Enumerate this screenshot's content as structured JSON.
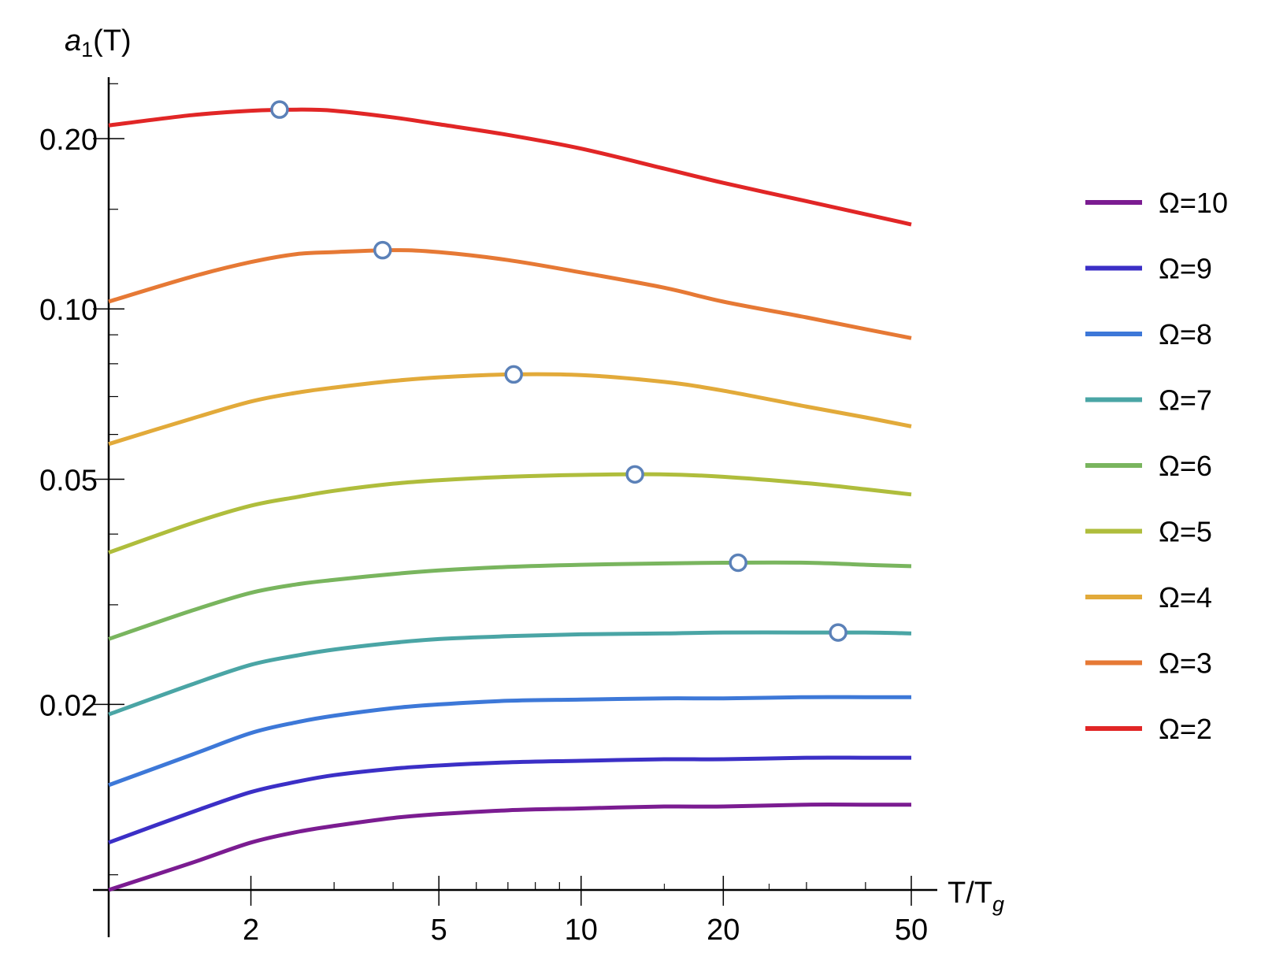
{
  "chart_data": {
    "type": "line",
    "title": "",
    "ylabel": {
      "main": "a",
      "sub": "1",
      "rest": "(T)"
    },
    "xlabel": {
      "main": "T/T",
      "sub": "g"
    },
    "xscale": "log",
    "yscale": "log",
    "xlim": [
      1,
      50
    ],
    "ylim": [
      0.0094,
      0.29
    ],
    "grid": false,
    "legend_position": "right",
    "x_ticks": [
      {
        "value": 2,
        "label": "2"
      },
      {
        "value": 5,
        "label": "5"
      },
      {
        "value": 10,
        "label": "10"
      },
      {
        "value": 20,
        "label": "20"
      },
      {
        "value": 50,
        "label": "50"
      }
    ],
    "y_ticks": [
      {
        "value": 0.02,
        "label": "0.02"
      },
      {
        "value": 0.05,
        "label": "0.05"
      },
      {
        "value": 0.1,
        "label": "0.10"
      },
      {
        "value": 0.2,
        "label": "0.20"
      }
    ],
    "x": [
      1,
      1.5,
      2,
      2.5,
      3,
      4,
      5,
      7,
      10,
      15,
      20,
      30,
      40,
      50
    ],
    "series": [
      {
        "name": "Ω=10",
        "color": "#7b1c91",
        "values": [
          0.0094,
          0.0105,
          0.0114,
          0.0119,
          0.0122,
          0.0126,
          0.0128,
          0.013,
          0.0131,
          0.0132,
          0.0132,
          0.0133,
          0.0133,
          0.0133
        ],
        "peak": null
      },
      {
        "name": "Ω=9",
        "color": "#3b2fc6",
        "values": [
          0.0114,
          0.0129,
          0.014,
          0.0146,
          0.015,
          0.0154,
          0.0156,
          0.0158,
          0.0159,
          0.016,
          0.016,
          0.0161,
          0.0161,
          0.0161
        ],
        "peak": null
      },
      {
        "name": "Ω=8",
        "color": "#3d78d8",
        "values": [
          0.0144,
          0.0163,
          0.0178,
          0.0186,
          0.0191,
          0.0197,
          0.02,
          0.0203,
          0.0204,
          0.0205,
          0.0205,
          0.0206,
          0.0206,
          0.0206
        ],
        "peak": null
      },
      {
        "name": "Ω=7",
        "color": "#4aa5a5",
        "values": [
          0.0192,
          0.0217,
          0.0235,
          0.0244,
          0.025,
          0.0257,
          0.0261,
          0.0264,
          0.0266,
          0.0267,
          0.0268,
          0.0268,
          0.0268,
          0.0267
        ],
        "peak": {
          "x": 35,
          "y": 0.0268
        }
      },
      {
        "name": "Ω=6",
        "color": "#79b55e",
        "values": [
          0.0261,
          0.0293,
          0.0315,
          0.0326,
          0.0332,
          0.034,
          0.0345,
          0.035,
          0.0353,
          0.0355,
          0.0356,
          0.0356,
          0.0353,
          0.0351
        ],
        "peak": {
          "x": 21.5,
          "y": 0.0356
        }
      },
      {
        "name": "Ω=5",
        "color": "#afbd3c",
        "values": [
          0.0371,
          0.0418,
          0.0449,
          0.0465,
          0.0477,
          0.0491,
          0.0498,
          0.0505,
          0.0509,
          0.051,
          0.0505,
          0.0492,
          0.048,
          0.047
        ],
        "peak": {
          "x": 13,
          "y": 0.051
        }
      },
      {
        "name": "Ω=4",
        "color": "#e2aa3a",
        "values": [
          0.0577,
          0.064,
          0.0686,
          0.0711,
          0.0726,
          0.0746,
          0.0757,
          0.0766,
          0.0764,
          0.0743,
          0.0717,
          0.0672,
          0.0643,
          0.062
        ],
        "peak": {
          "x": 7.2,
          "y": 0.0766
        }
      },
      {
        "name": "Ω=3",
        "color": "#e67935",
        "values": [
          0.103,
          0.114,
          0.121,
          0.125,
          0.126,
          0.127,
          0.126,
          0.122,
          0.116,
          0.109,
          0.103,
          0.0966,
          0.0921,
          0.0888
        ],
        "peak": {
          "x": 3.8,
          "y": 0.127
        }
      },
      {
        "name": "Ω=2",
        "color": "#e12626",
        "values": [
          0.211,
          0.22,
          0.224,
          0.225,
          0.224,
          0.218,
          0.212,
          0.203,
          0.192,
          0.177,
          0.167,
          0.155,
          0.147,
          0.141
        ],
        "peak": {
          "x": 2.3,
          "y": 0.225
        }
      }
    ],
    "legend_order": [
      "Ω=10",
      "Ω=9",
      "Ω=8",
      "Ω=7",
      "Ω=6",
      "Ω=5",
      "Ω=4",
      "Ω=3",
      "Ω=2"
    ],
    "marker_style": {
      "fill": "#ffffff",
      "stroke": "#5b81b8"
    }
  }
}
